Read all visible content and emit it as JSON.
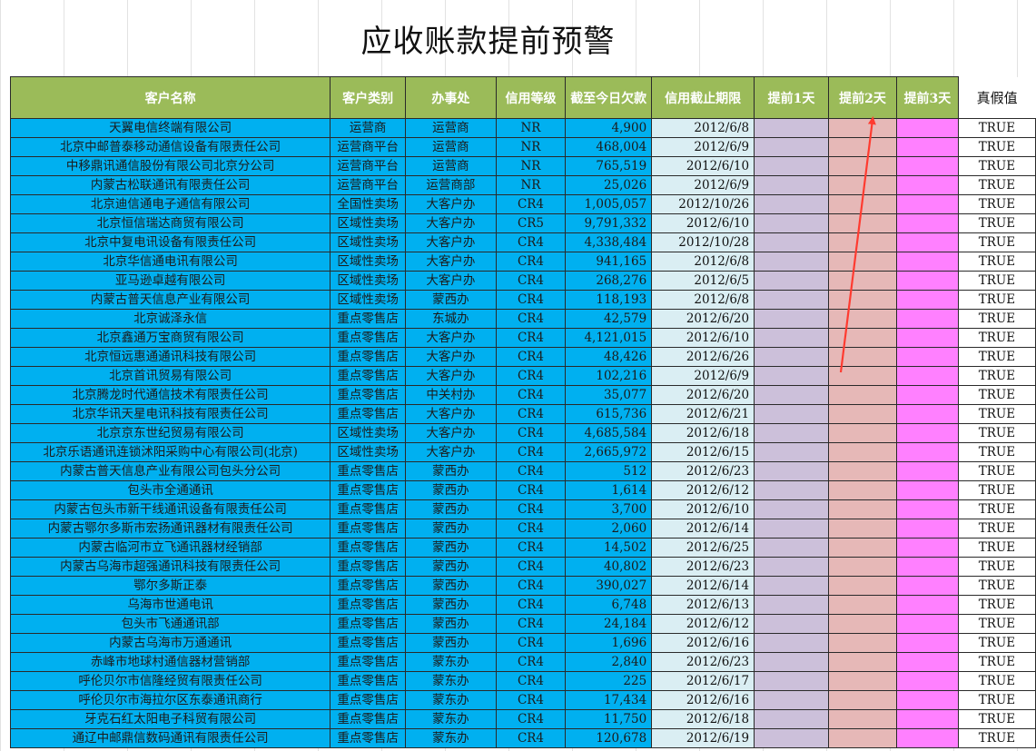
{
  "sheet": {
    "title": "应收账款提前预警",
    "headers": [
      "客户名称",
      "客户类别",
      "办事处",
      "信用等级",
      "截至今日欠款",
      "信用截止期限",
      "提前1天",
      "提前2天",
      "提前3天",
      "真假值"
    ],
    "rows": [
      [
        "天翼电信终端有限公司",
        "运营商",
        "运营商",
        "NR",
        "4,900",
        "2012/6/8",
        "",
        "",
        "",
        "TRUE"
      ],
      [
        "北京中邮普泰移动通信设备有限责任公司",
        "运营商平台",
        "运营商",
        "NR",
        "468,004",
        "2012/6/9",
        "",
        "",
        "",
        "TRUE"
      ],
      [
        "中移鼎讯通信股份有限公司北京分公司",
        "运营商平台",
        "运营商",
        "NR",
        "765,519",
        "2012/6/10",
        "",
        "",
        "",
        "TRUE"
      ],
      [
        "内蒙古松联通讯有限责任公司",
        "运营商平台",
        "运营商部",
        "NR",
        "25,026",
        "2012/6/9",
        "",
        "",
        "",
        "TRUE"
      ],
      [
        "北京迪信通电子通信有限公司",
        "全国性卖场",
        "大客户办",
        "CR4",
        "1,005,057",
        "2012/10/26",
        "",
        "",
        "",
        "TRUE"
      ],
      [
        "北京恒信瑞达商贸有限公司",
        "区域性卖场",
        "大客户办",
        "CR5",
        "9,791,332",
        "2012/6/10",
        "",
        "",
        "",
        "TRUE"
      ],
      [
        "北京中复电讯设备有限责任公司",
        "区域性卖场",
        "大客户办",
        "CR4",
        "4,338,484",
        "2012/10/28",
        "",
        "",
        "",
        "TRUE"
      ],
      [
        "北京华信通电讯有限公司",
        "区域性卖场",
        "大客户办",
        "CR4",
        "941,165",
        "2012/6/8",
        "",
        "",
        "",
        "TRUE"
      ],
      [
        "亚马逊卓越有限公司",
        "区域性卖场",
        "大客户办",
        "CR4",
        "268,276",
        "2012/6/5",
        "",
        "",
        "",
        "TRUE"
      ],
      [
        "内蒙古普天信息产业有限公司",
        "区域性卖场",
        "蒙西办",
        "CR4",
        "118,193",
        "2012/6/8",
        "",
        "",
        "",
        "TRUE"
      ],
      [
        "北京诚泽永信",
        "重点零售店",
        "东城办",
        "CR4",
        "42,579",
        "2012/6/20",
        "",
        "",
        "",
        "TRUE"
      ],
      [
        "北京鑫通万宝商贸有限公司",
        "重点零售店",
        "大客户办",
        "CR4",
        "4,121,015",
        "2012/6/10",
        "",
        "",
        "",
        "TRUE"
      ],
      [
        "北京恒远惠通通讯科技有限公司",
        "重点零售店",
        "大客户办",
        "CR4",
        "48,426",
        "2012/6/26",
        "",
        "",
        "",
        "TRUE"
      ],
      [
        "北京首讯贸易有限公司",
        "重点零售店",
        "大客户办",
        "CR4",
        "102,216",
        "2012/6/9",
        "",
        "",
        "",
        "TRUE"
      ],
      [
        "北京腾龙时代通信技术有限责任公司",
        "重点零售店",
        "中关村办",
        "CR4",
        "35,077",
        "2012/6/20",
        "",
        "",
        "",
        "TRUE"
      ],
      [
        "北京华讯天星电讯科技有限责任公司",
        "重点零售店",
        "大客户办",
        "CR4",
        "615,736",
        "2012/6/21",
        "",
        "",
        "",
        "TRUE"
      ],
      [
        "北京京东世纪贸易有限公司",
        "区域性卖场",
        "大客户办",
        "CR4",
        "4,685,584",
        "2012/6/18",
        "",
        "",
        "",
        "TRUE"
      ],
      [
        "北京乐语通讯连锁沭阳采购中心有限公司(北京)",
        "区域性卖场",
        "大客户办",
        "CR4",
        "2,665,972",
        "2012/6/15",
        "",
        "",
        "",
        "TRUE"
      ],
      [
        "内蒙古普天信息产业有限公司包头分公司",
        "重点零售店",
        "蒙西办",
        "CR4",
        "512",
        "2012/6/23",
        "",
        "",
        "",
        "TRUE"
      ],
      [
        "包头市全通通讯",
        "重点零售店",
        "蒙西办",
        "CR4",
        "1,614",
        "2012/6/12",
        "",
        "",
        "",
        "TRUE"
      ],
      [
        "内蒙古包头市新干线通讯设备有限责任公司",
        "重点零售店",
        "蒙西办",
        "CR4",
        "3,700",
        "2012/6/10",
        "",
        "",
        "",
        "TRUE"
      ],
      [
        "内蒙古鄂尔多斯市宏扬通讯器材有限责任公司",
        "重点零售店",
        "蒙西办",
        "CR4",
        "2,060",
        "2012/6/14",
        "",
        "",
        "",
        "TRUE"
      ],
      [
        "内蒙古临河市立飞通讯器材经销部",
        "重点零售店",
        "蒙西办",
        "CR4",
        "14,502",
        "2012/6/25",
        "",
        "",
        "",
        "TRUE"
      ],
      [
        "内蒙古乌海市超强通讯科技有限责任公司",
        "重点零售店",
        "蒙西办",
        "CR4",
        "40,802",
        "2012/6/23",
        "",
        "",
        "",
        "TRUE"
      ],
      [
        "鄂尔多斯正泰",
        "重点零售店",
        "蒙西办",
        "CR4",
        "390,027",
        "2012/6/14",
        "",
        "",
        "",
        "TRUE"
      ],
      [
        "乌海市世通电讯",
        "重点零售店",
        "蒙西办",
        "CR4",
        "6,748",
        "2012/6/13",
        "",
        "",
        "",
        "TRUE"
      ],
      [
        "包头市飞通通讯部",
        "重点零售店",
        "蒙西办",
        "CR4",
        "24,184",
        "2012/6/12",
        "",
        "",
        "",
        "TRUE"
      ],
      [
        "内蒙古乌海市万通通讯",
        "重点零售店",
        "蒙西办",
        "CR4",
        "1,696",
        "2012/6/16",
        "",
        "",
        "",
        "TRUE"
      ],
      [
        "赤峰市地球村通信器材营销部",
        "重点零售店",
        "蒙东办",
        "CR4",
        "2,840",
        "2012/6/23",
        "",
        "",
        "",
        "TRUE"
      ],
      [
        "呼伦贝尔市信隆经贸有限责任公司",
        "重点零售店",
        "蒙东办",
        "CR4",
        "225",
        "2012/6/17",
        "",
        "",
        "",
        "TRUE"
      ],
      [
        "呼伦贝尔市海拉尔区东泰通讯商行",
        "重点零售店",
        "蒙东办",
        "CR4",
        "17,434",
        "2012/6/16",
        "",
        "",
        "",
        "TRUE"
      ],
      [
        "牙克石红太阳电子科贸有限公司",
        "重点零售店",
        "蒙东办",
        "CR4",
        "11,750",
        "2012/6/18",
        "",
        "",
        "",
        "TRUE"
      ],
      [
        "通辽中邮鼎信数码通讯有限责任公司",
        "重点零售店",
        "蒙东办",
        "CR4",
        "120,678",
        "2012/6/19",
        "",
        "",
        "",
        "TRUE"
      ]
    ]
  },
  "annotation": {
    "arrow_color": "#ff3b30"
  }
}
